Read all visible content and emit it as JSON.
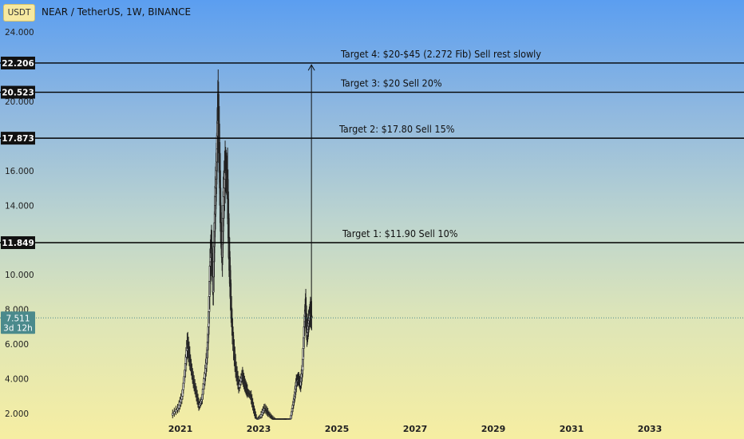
{
  "header": {
    "currency_badge": "USDT",
    "title": "NEAR / TetherUS, 1W, BINANCE"
  },
  "colors": {
    "level_line": "#000000",
    "candle": "#222222",
    "current_price_bg": "#4b8a8c"
  },
  "chart_data": {
    "type": "candlestick",
    "title": "NEAR / TetherUS, 1W, BINANCE",
    "ylim": [
      1.5,
      24.8
    ],
    "xlim": [
      2019.0,
      2034.0
    ],
    "y_ticks": [
      "24.000",
      "20.000",
      "16.000",
      "14.000",
      "10.000",
      "8.000",
      "6.000",
      "4.000",
      "2.000"
    ],
    "y_tick_values": [
      24,
      20,
      16,
      14,
      10,
      8,
      6,
      4,
      2
    ],
    "x_ticks": [
      "2021",
      "2023",
      "2025",
      "2027",
      "2029",
      "2031",
      "2033"
    ],
    "x_tick_values": [
      2021,
      2023,
      2025,
      2027,
      2029,
      2031,
      2033
    ],
    "current_price": {
      "value": 7.511,
      "label": "7.511",
      "countdown": "3d 12h"
    },
    "levels": [
      {
        "value": 22.206,
        "label": "22.206",
        "annotation": "Target 4: $20-$45 (2.272 Fib) Sell rest slowly"
      },
      {
        "value": 20.523,
        "label": "20.523",
        "annotation": "Target 3: $20 Sell 20%"
      },
      {
        "value": 17.873,
        "label": "17.873",
        "annotation": "Target 2: $17.80 Sell 15%"
      },
      {
        "value": 11.849,
        "label": "11.849",
        "annotation": "Target 1: $11.90 Sell 10%"
      }
    ],
    "arrow": {
      "x": 2024.35,
      "from": 7.6,
      "to": 22.1
    },
    "price_path": [
      [
        2020.78,
        1.9
      ],
      [
        2020.95,
        2.3
      ],
      [
        2021.05,
        3.0
      ],
      [
        2021.12,
        4.5
      ],
      [
        2021.18,
        6.0
      ],
      [
        2021.25,
        5.0
      ],
      [
        2021.32,
        4.0
      ],
      [
        2021.4,
        3.2
      ],
      [
        2021.48,
        2.4
      ],
      [
        2021.55,
        2.8
      ],
      [
        2021.62,
        4.0
      ],
      [
        2021.68,
        5.2
      ],
      [
        2021.72,
        7.0
      ],
      [
        2021.76,
        10.5
      ],
      [
        2021.8,
        11.5
      ],
      [
        2021.84,
        9.0
      ],
      [
        2021.87,
        12.5
      ],
      [
        2021.9,
        14.5
      ],
      [
        2021.93,
        16.5
      ],
      [
        2021.96,
        19.5
      ],
      [
        2022.0,
        17.0
      ],
      [
        2022.03,
        13.0
      ],
      [
        2022.07,
        11.0
      ],
      [
        2022.1,
        14.0
      ],
      [
        2022.15,
        16.0
      ],
      [
        2022.2,
        15.5
      ],
      [
        2022.25,
        11.0
      ],
      [
        2022.3,
        8.0
      ],
      [
        2022.35,
        6.0
      ],
      [
        2022.42,
        4.5
      ],
      [
        2022.5,
        3.5
      ],
      [
        2022.58,
        4.2
      ],
      [
        2022.65,
        3.6
      ],
      [
        2022.72,
        3.2
      ],
      [
        2022.8,
        3.0
      ],
      [
        2022.88,
        2.2
      ],
      [
        2022.95,
        1.6
      ],
      [
        2023.05,
        1.8
      ],
      [
        2023.15,
        2.3
      ],
      [
        2023.25,
        2.0
      ],
      [
        2023.35,
        1.7
      ],
      [
        2023.45,
        1.5
      ],
      [
        2023.55,
        1.4
      ],
      [
        2023.65,
        1.3
      ],
      [
        2023.72,
        1.2
      ],
      [
        2023.8,
        1.5
      ],
      [
        2023.87,
        2.3
      ],
      [
        2023.92,
        3.0
      ],
      [
        2023.97,
        3.8
      ],
      [
        2024.02,
        4.0
      ],
      [
        2024.07,
        3.6
      ],
      [
        2024.12,
        4.5
      ],
      [
        2024.17,
        7.0
      ],
      [
        2024.2,
        8.2
      ],
      [
        2024.24,
        6.5
      ],
      [
        2024.28,
        7.2
      ],
      [
        2024.32,
        7.8
      ],
      [
        2024.36,
        7.51
      ]
    ]
  }
}
